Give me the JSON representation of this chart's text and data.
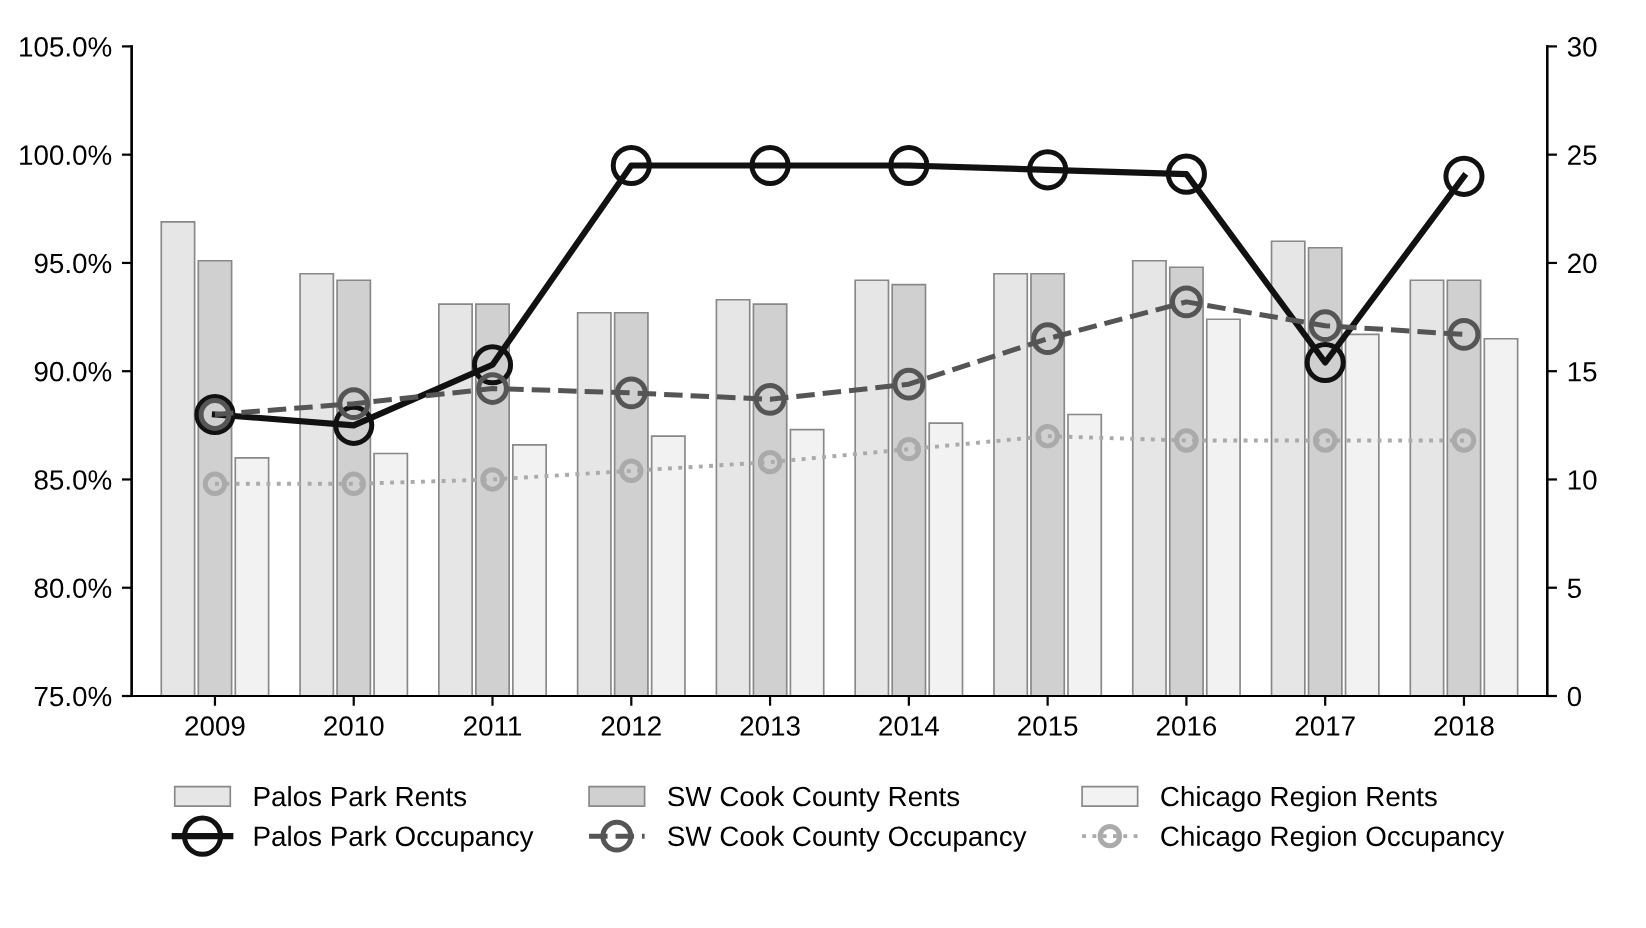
{
  "chart_data": {
    "type": "bar",
    "categories": [
      "2009",
      "2010",
      "2011",
      "2012",
      "2013",
      "2014",
      "2015",
      "2016",
      "2017",
      "2018"
    ],
    "series": [
      {
        "name": "Palos Park Rents",
        "axis": "y2",
        "color": "#e6e6e6",
        "values": [
          21.9,
          19.5,
          18.1,
          17.7,
          18.3,
          19.2,
          19.5,
          20.1,
          21.0,
          19.2
        ]
      },
      {
        "name": "SW Cook County Rents",
        "axis": "y2",
        "color": "#d0d0d0",
        "values": [
          20.1,
          19.2,
          18.1,
          17.7,
          18.1,
          19.0,
          19.5,
          19.8,
          20.7,
          19.2
        ]
      },
      {
        "name": "Chicago Region Rents",
        "axis": "y2",
        "color": "#f2f2f2",
        "values": [
          11.0,
          11.2,
          11.6,
          12.0,
          12.3,
          12.6,
          13.0,
          17.4,
          16.7,
          16.5
        ]
      },
      {
        "name": "Palos Park Occupancy",
        "type": "line",
        "color": "#111111",
        "line_style": "solid",
        "values": [
          88.0,
          87.5,
          90.3,
          99.5,
          99.5,
          99.5,
          99.3,
          99.1,
          90.4,
          99.0
        ]
      },
      {
        "name": "SW Cook County Occupancy",
        "type": "line",
        "color": "#555555",
        "line_style": "dashed",
        "values": [
          88.0,
          88.5,
          89.2,
          89.0,
          88.7,
          89.4,
          91.5,
          93.2,
          92.1,
          91.7
        ]
      },
      {
        "name": "Chicago Region Occupancy",
        "type": "line",
        "color": "#aaaaaa",
        "line_style": "dotted",
        "values": [
          84.8,
          84.8,
          85.0,
          85.4,
          85.8,
          86.4,
          87.0,
          86.8,
          86.8,
          86.8
        ]
      }
    ],
    "ylim": [
      75,
      105
    ],
    "yticks": [
      {
        "value": 75,
        "label": "75.0%"
      },
      {
        "value": 80,
        "label": "80.0%"
      },
      {
        "value": 85,
        "label": "85.0%"
      },
      {
        "value": 90,
        "label": "90.0%"
      },
      {
        "value": 95,
        "label": "95.0%"
      },
      {
        "value": 100,
        "label": "100.0%"
      },
      {
        "value": 105,
        "label": "105.0%"
      }
    ],
    "y2lim": [
      0,
      30
    ],
    "y2ticks": [
      0,
      5,
      10,
      15,
      20,
      25,
      30
    ],
    "marker": "circle",
    "grid": false,
    "legend": "bottom"
  }
}
